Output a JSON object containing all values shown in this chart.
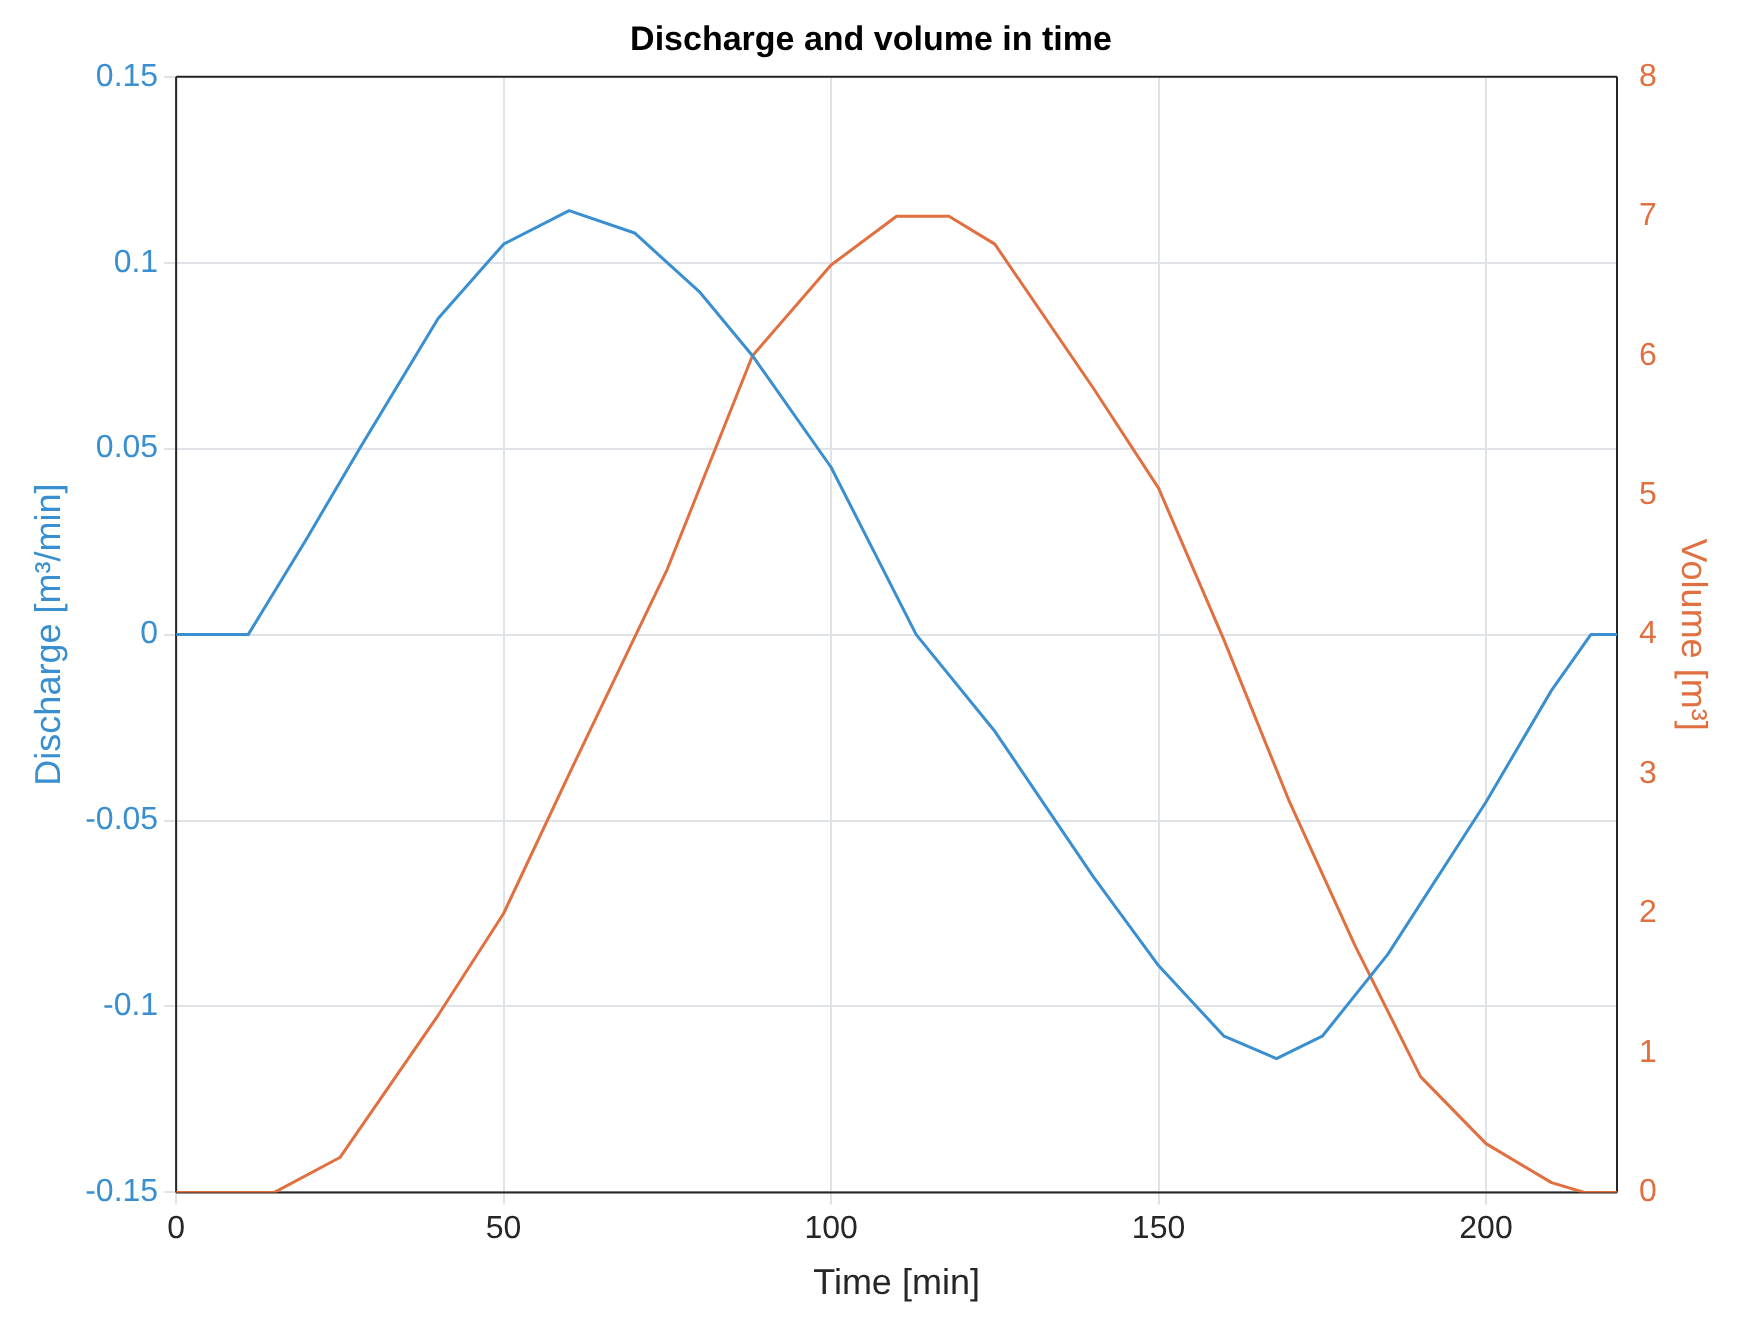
{
  "chart_data": {
    "type": "line",
    "title": "Discharge and volume in time",
    "xlabel": "Time [min]",
    "ylabel": "Discharge [m³/min]",
    "y2label": "Volume [m³]",
    "xlim": [
      0,
      220
    ],
    "xticks": [
      0,
      50,
      100,
      150,
      200
    ],
    "ylim": [
      -0.15,
      0.15
    ],
    "yticks": [
      -0.15,
      -0.1,
      -0.05,
      0,
      0.05,
      0.1,
      0.15
    ],
    "y2lim": [
      0,
      8
    ],
    "y2ticks": [
      0,
      1,
      2,
      3,
      4,
      5,
      6,
      7,
      8
    ],
    "grid": true,
    "legend": false,
    "marker": "none",
    "line_style": "solid",
    "series": [
      {
        "color": "#3a8fd0",
        "x": [
          0,
          11,
          20,
          28,
          40,
          50,
          60,
          70,
          80,
          88,
          100,
          113,
          125,
          140,
          150,
          160,
          168,
          175,
          185,
          200,
          210,
          216,
          220
        ],
        "values": [
          0,
          0,
          0.026,
          0.05,
          0.085,
          0.105,
          0.114,
          0.108,
          0.092,
          0.075,
          0.045,
          0,
          -0.026,
          -0.065,
          -0.089,
          -0.108,
          -0.114,
          -0.108,
          -0.086,
          -0.045,
          -0.015,
          0,
          0
        ]
      },
      {
        "color": "#e07040",
        "axis": "y2",
        "x": [
          0,
          15,
          25,
          40,
          50,
          60,
          75,
          88,
          100,
          110,
          118,
          125,
          140,
          150,
          160,
          170,
          180,
          190,
          200,
          210,
          215,
          220
        ],
        "values": [
          0,
          0,
          0.25,
          1.27,
          2,
          3,
          4.47,
          6,
          6.65,
          7,
          7,
          6.8,
          5.77,
          5.05,
          3.96,
          2.8,
          1.77,
          0.83,
          0.35,
          0.07,
          0,
          0
        ]
      }
    ]
  }
}
